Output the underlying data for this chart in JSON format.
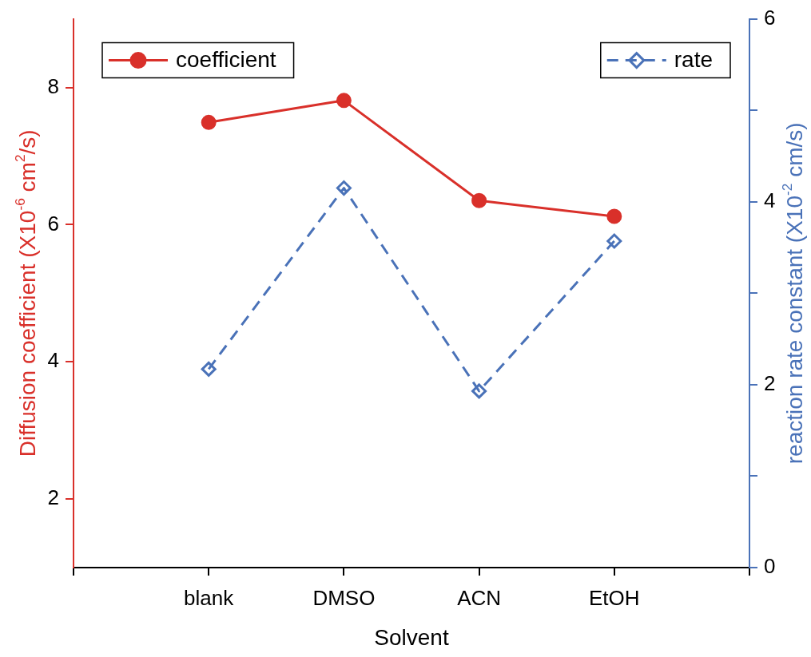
{
  "chart_data": {
    "type": "line",
    "xlabel": "Solvent",
    "ylabel": "Diffusion coefficient (X10$^{-6}$ cm$^{2}$/s)",
    "y2label": "reaction rate constant (X10$^{-2}$ cm/s)",
    "categories": [
      "blank",
      "DMSO",
      "ACN",
      "EtOH"
    ],
    "series": [
      {
        "name": "coefficient",
        "color": "#d9302a",
        "values": [
          7.49,
          7.81,
          6.35,
          6.12
        ],
        "marker": "circle",
        "line_style": "solid"
      },
      {
        "name": "rate",
        "color": "#4a72b8",
        "values": [
          2.17,
          4.15,
          1.93,
          3.57
        ],
        "axis": "y2",
        "marker": "diamond",
        "line_style": "dashed"
      }
    ],
    "ylim": [
      1,
      9
    ],
    "yticks": [
      2,
      4,
      6,
      8
    ],
    "y2lim": [
      0,
      6
    ],
    "y2ticks": [
      0,
      {
        "value": 1,
        "label": null
      },
      2,
      {
        "value": 3,
        "label": null
      },
      4,
      {
        "value": 5,
        "label": null
      },
      6
    ],
    "grid": false,
    "legend": "top"
  }
}
